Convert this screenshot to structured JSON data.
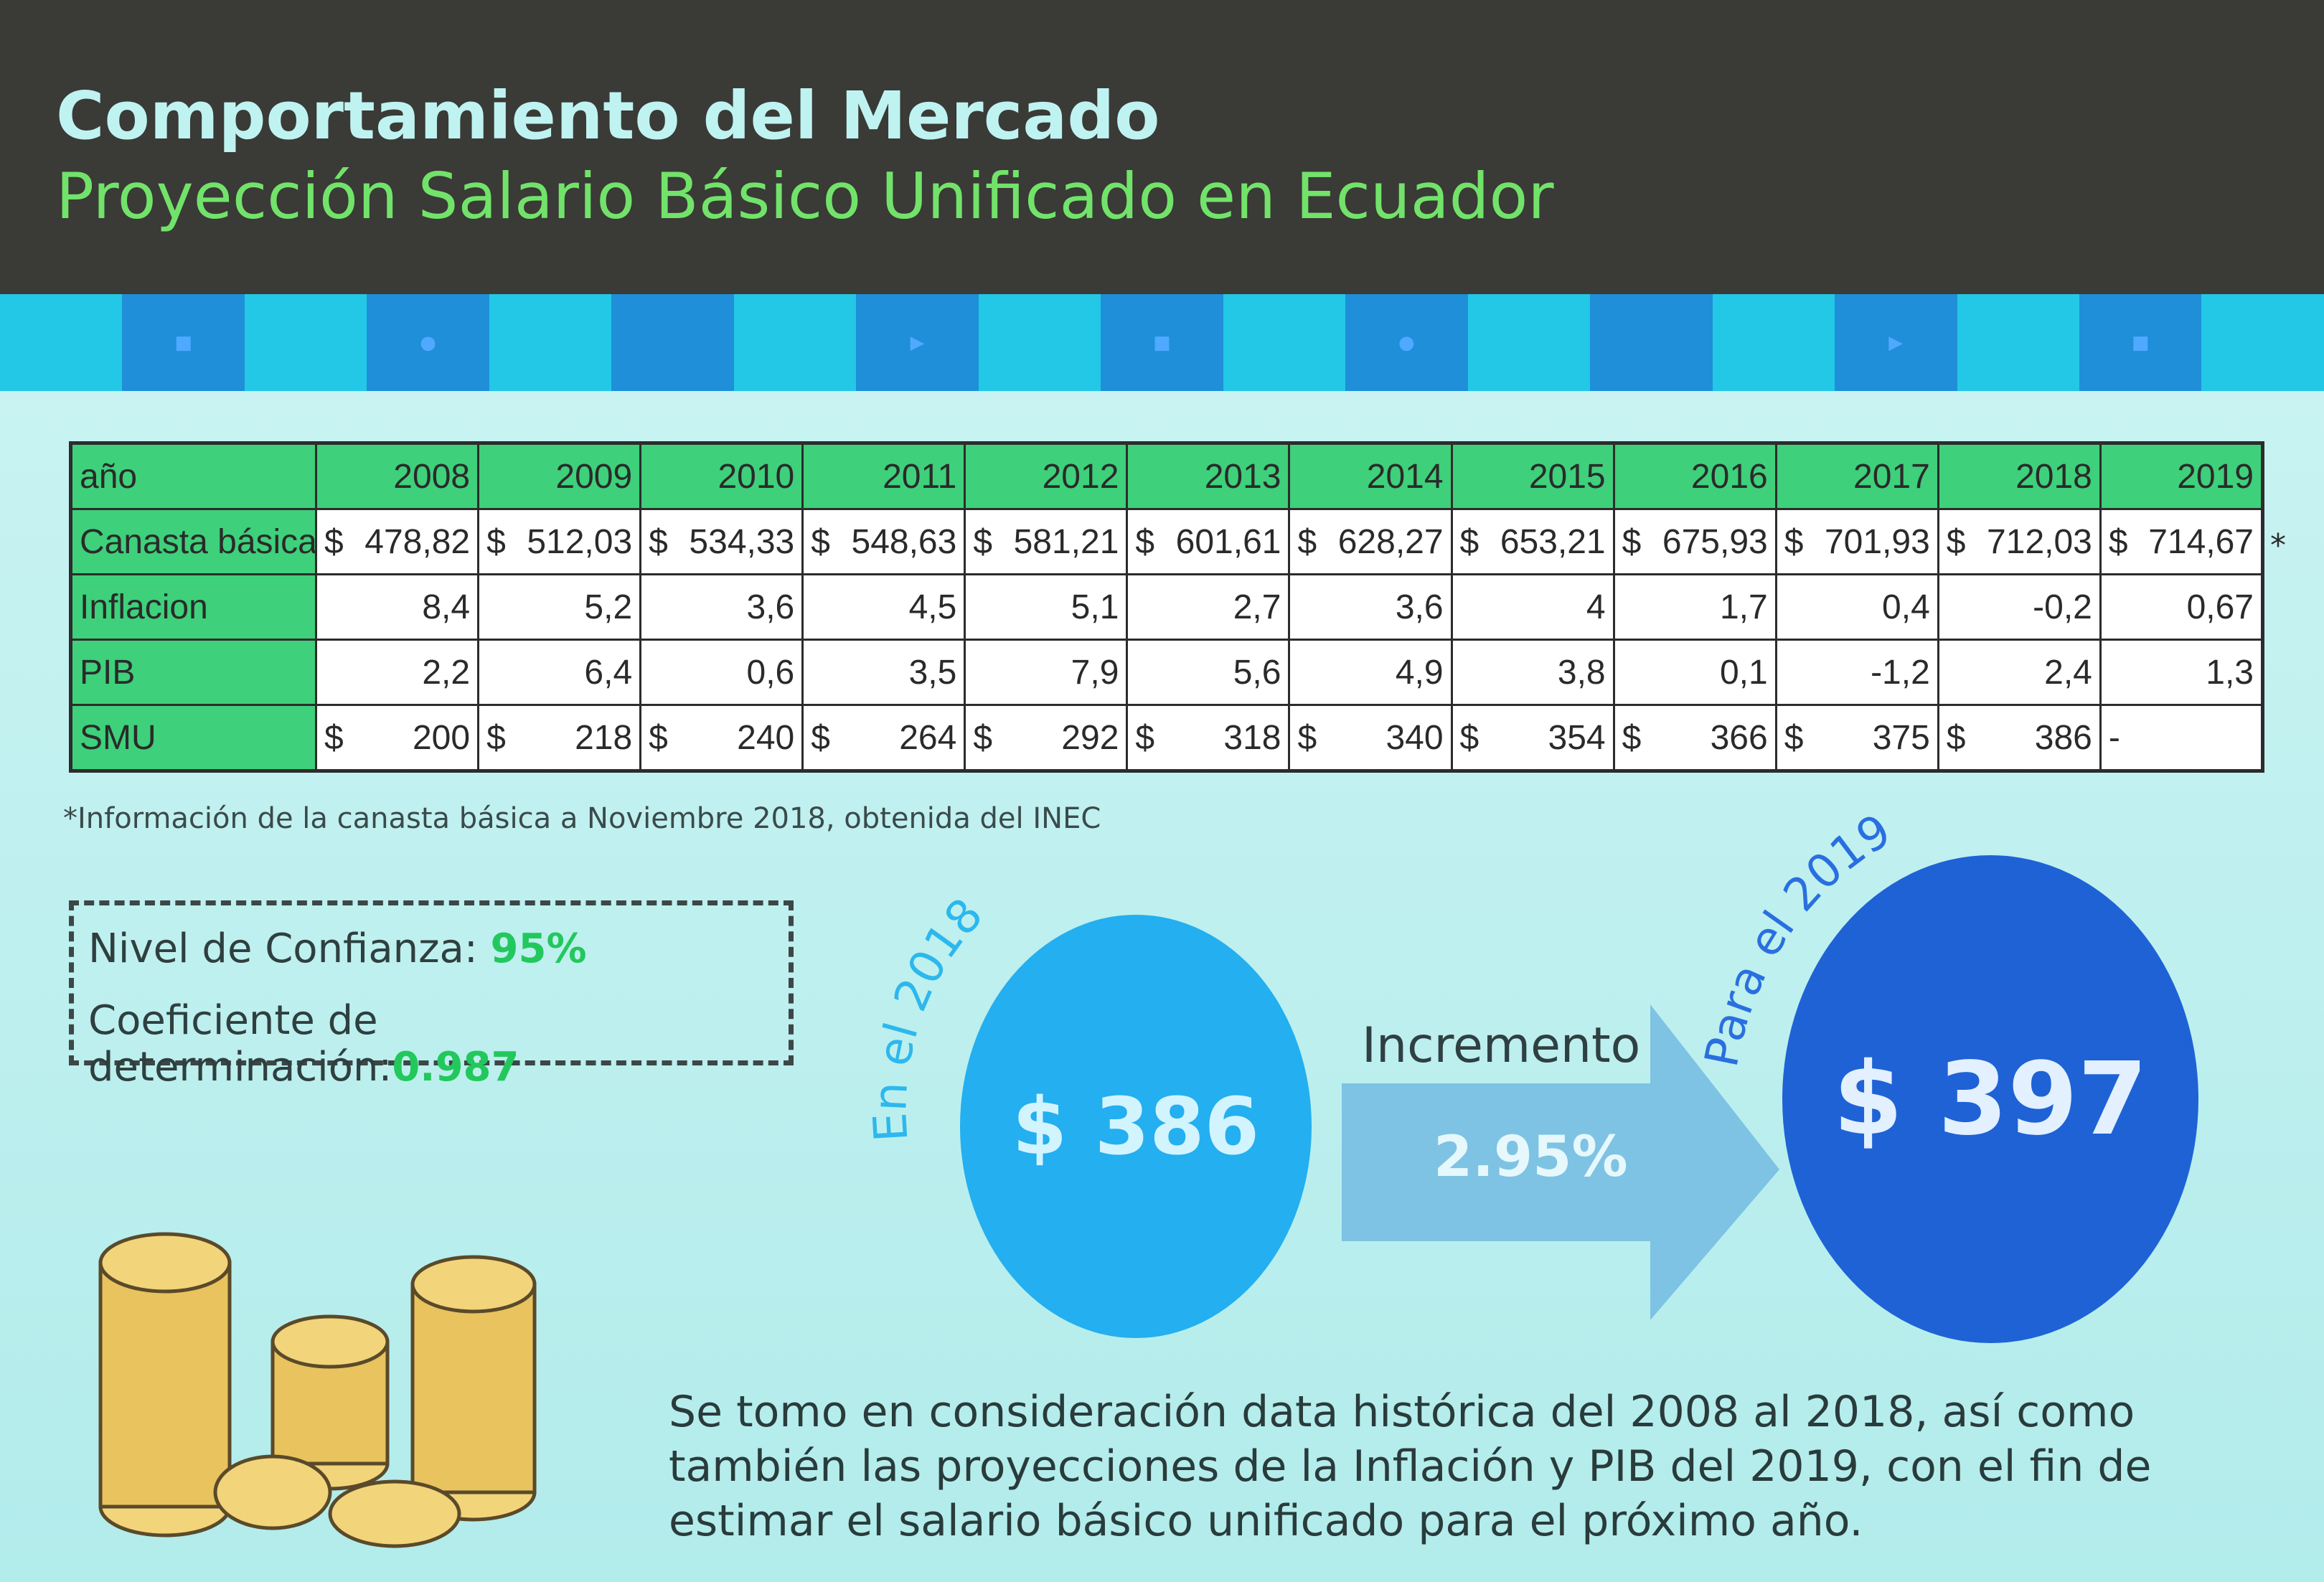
{
  "header": {
    "title": "Comportamiento del Mercado",
    "subtitle": "Proyección Salario Básico Unificado en Ecuador"
  },
  "colors": {
    "header_bg": "#3a3a36",
    "title": "#bff3f1",
    "subtitle": "#72e36a",
    "table_header_green": "#3ed07a",
    "circle_2018": "#23aff0",
    "circle_2019": "#1f62d6",
    "arrow": "#7ec3e3",
    "background": "#b8ecec"
  },
  "table": {
    "row_labels": [
      "año",
      "Canasta básica",
      "Inflacion",
      "PIB",
      "SMU"
    ],
    "years": [
      "2008",
      "2009",
      "2010",
      "2011",
      "2012",
      "2013",
      "2014",
      "2015",
      "2016",
      "2017",
      "2018",
      "2019"
    ],
    "canasta": [
      "478,82",
      "512,03",
      "534,33",
      "548,63",
      "581,21",
      "601,61",
      "628,27",
      "653,21",
      "675,93",
      "701,93",
      "712,03",
      "714,67"
    ],
    "inflacion": [
      "8,4",
      "5,2",
      "3,6",
      "4,5",
      "5,1",
      "2,7",
      "3,6",
      "4",
      "1,7",
      "0,4",
      "-0,2",
      "0,67"
    ],
    "pib": [
      "2,2",
      "6,4",
      "0,6",
      "3,5",
      "7,9",
      "5,6",
      "4,9",
      "3,8",
      "0,1",
      "-1,2",
      "2,4",
      "1,3"
    ],
    "smu": [
      "200",
      "218",
      "240",
      "264",
      "292",
      "318",
      "340",
      "354",
      "366",
      "375",
      "386"
    ],
    "smu_missing": "-",
    "currency": "$",
    "asterisk": "*"
  },
  "footnote": "*Información de la canasta básica a Noviembre 2018, obtenida del INEC",
  "stats": {
    "confidence_label": "Nivel de Confianza:",
    "confidence_value": "95%",
    "r2_label": "Coeficiente de determinación:",
    "r2_value": "0.987"
  },
  "projection": {
    "left_caption": "En el 2018",
    "left_value": "$ 386",
    "increment_label": "Incremento",
    "increment_value": "2.95%",
    "right_caption": "Para el 2019",
    "right_value": "$ 397"
  },
  "description": "Se tomo en consideración data histórica del 2008 al 2018, así como también las proyecciones de la Inflación y PIB del 2019, con el fin de estimar el salario básico unificado para el próximo año."
}
